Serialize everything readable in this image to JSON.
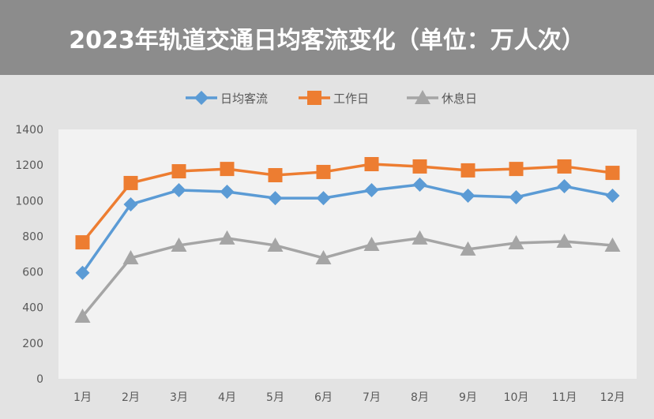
{
  "chart_data": {
    "type": "line",
    "title": "2023年轨道交通日均客流变化（单位：万人次）",
    "categories": [
      "1月",
      "2月",
      "3月",
      "4月",
      "5月",
      "6月",
      "7月",
      "8月",
      "9月",
      "10月",
      "11月",
      "12月"
    ],
    "series": [
      {
        "name": "日均客流",
        "color": "#5b9bd5",
        "marker": "diamond",
        "values": [
          595,
          979,
          1059,
          1050,
          1014,
          1014,
          1059,
          1090,
          1028,
          1019,
          1081,
          1028
        ]
      },
      {
        "name": "工作日",
        "color": "#ed7d31",
        "marker": "square",
        "values": [
          766,
          1099,
          1165,
          1178,
          1143,
          1161,
          1205,
          1192,
          1170,
          1178,
          1192,
          1156
        ]
      },
      {
        "name": "休息日",
        "color": "#a5a5a5",
        "marker": "triangle",
        "values": [
          350,
          678,
          749,
          789,
          749,
          678,
          753,
          789,
          727,
          762,
          771,
          749
        ]
      }
    ],
    "ylim": [
      0,
      1400
    ],
    "yticks": [
      0,
      200,
      400,
      600,
      800,
      1000,
      1200,
      1400
    ],
    "grid": false,
    "legend": "top"
  }
}
